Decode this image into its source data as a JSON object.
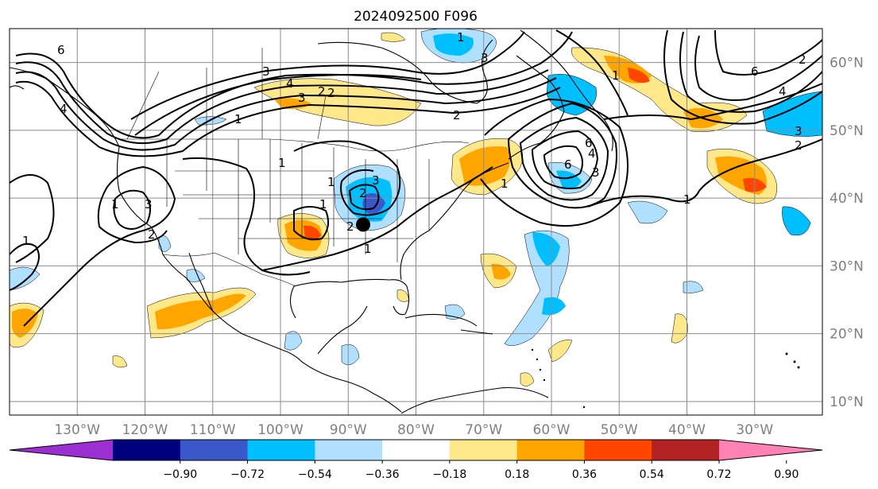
{
  "title": "2024092500 F096",
  "map": {
    "lon_range": [
      -140,
      -20
    ],
    "lat_range": [
      8,
      65
    ],
    "lon_ticks": [
      "130°W",
      "120°W",
      "110°W",
      "100°W",
      "90°W",
      "80°W",
      "70°W",
      "60°W",
      "50°W",
      "40°W",
      "30°W"
    ],
    "lat_ticks": [
      "60°N",
      "50°N",
      "40°N",
      "30°N",
      "20°N",
      "10°N"
    ],
    "grid": true,
    "marker": {
      "label": "point-marker",
      "lon": -87.8,
      "lat": 36.1,
      "color": "#000000"
    }
  },
  "colorbar": {
    "colors": [
      "#9c2fd1",
      "#00007f",
      "#3a58c9",
      "#00bfff",
      "#b0e0ff",
      "#ffffff",
      "#ffe88a",
      "#ffa500",
      "#ff4500",
      "#b22222",
      "#ff82b4"
    ],
    "labels": [
      "−0.90",
      "−0.72",
      "−0.54",
      "−0.36",
      "−0.18",
      "0.18",
      "0.36",
      "0.54",
      "0.72",
      "0.90"
    ]
  },
  "contour_labels": [
    "6",
    "4",
    "3",
    "2",
    "1",
    "2",
    "1",
    "6",
    "4",
    "6",
    "4",
    "3",
    "2",
    "1",
    "1",
    "3",
    "2",
    "1",
    "2",
    "3",
    "2",
    "1",
    "1",
    "1",
    "1",
    "6",
    "4",
    "3",
    "2",
    "1",
    "1",
    "3",
    "3",
    "2"
  ],
  "icons": {
    "marker": "dot-marker-icon"
  }
}
